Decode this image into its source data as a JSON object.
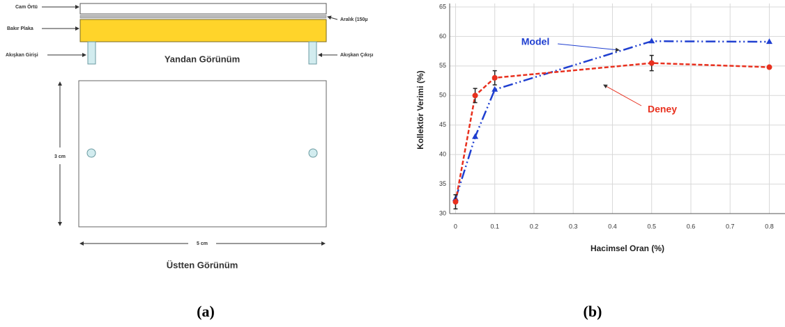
{
  "diagram": {
    "labels": {
      "glass": "Cam Örtü",
      "copper": "Bakır Plaka",
      "gap": "Aralık (150µ",
      "inlet": "Akışkan Girişi",
      "outlet": "Akışkan Çıkışı"
    },
    "side_view": "Yandan Görünüm",
    "height_dim": "3 cm",
    "width_dim": "5 cm",
    "top_view": "Üstten Görünüm"
  },
  "panel_labels": [
    "(a)",
    "(b)"
  ],
  "chart_data": {
    "type": "line",
    "x_label": "Hacimsel Oran (%)",
    "y_label": "Kollektör Verimi (%)",
    "xlim": [
      -0.015,
      0.84
    ],
    "ylim": [
      30,
      65
    ],
    "xticks": [
      0,
      0.1,
      0.2,
      0.3,
      0.4,
      0.5,
      0.6,
      0.7,
      0.8
    ],
    "yticks": [
      30,
      35,
      40,
      45,
      50,
      55,
      60,
      65
    ],
    "grid": true,
    "x": [
      0,
      0.05,
      0.1,
      0.5,
      0.8
    ],
    "series": [
      {
        "name": "Model",
        "color": "#1f3fd0",
        "dash": "dashdot",
        "marker": "triangle",
        "values": [
          32.5,
          43,
          51,
          59.2,
          59.1
        ]
      },
      {
        "name": "Deney",
        "color": "#e8301e",
        "dash": "dashed",
        "marker": "circle",
        "values": [
          32,
          50,
          53,
          55.5,
          54.8
        ],
        "errors": [
          1.2,
          1.2,
          1.2,
          1.3,
          null
        ]
      }
    ]
  }
}
